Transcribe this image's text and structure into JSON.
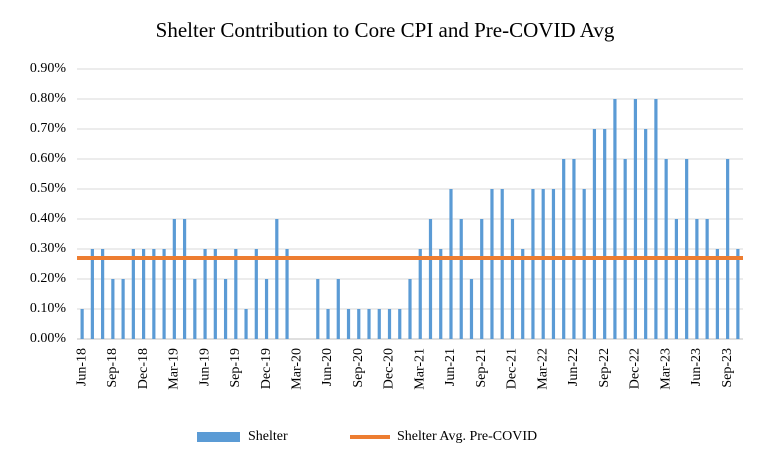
{
  "chart_data": {
    "type": "bar",
    "title": "Shelter Contribution to Core CPI and Pre-COVID Avg",
    "categories": [
      "Jun-18",
      null,
      null,
      "Sep-18",
      null,
      null,
      "Dec-18",
      null,
      null,
      "Mar-19",
      null,
      null,
      "Jun-19",
      null,
      null,
      "Sep-19",
      null,
      null,
      "Dec-19",
      null,
      null,
      "Mar-20",
      null,
      null,
      "Jun-20",
      null,
      null,
      "Sep-20",
      null,
      null,
      "Dec-20",
      null,
      null,
      "Mar-21",
      null,
      null,
      "Jun-21",
      null,
      null,
      "Sep-21",
      null,
      null,
      "Dec-21",
      null,
      null,
      "Mar-22",
      null,
      null,
      "Jun-22",
      null,
      null,
      "Sep-22",
      null,
      null,
      "Dec-22",
      null,
      null,
      "Mar-23",
      null,
      null,
      "Jun-23",
      null,
      null,
      "Sep-23",
      null
    ],
    "series": [
      {
        "name": "Shelter",
        "type": "bar",
        "color": "#5b9bd5",
        "values": [
          0.1,
          0.3,
          0.3,
          0.2,
          0.2,
          0.3,
          0.3,
          0.3,
          0.3,
          0.4,
          0.4,
          0.2,
          0.3,
          0.3,
          0.2,
          0.3,
          0.1,
          0.3,
          0.2,
          0.4,
          0.3,
          0,
          0,
          0.2,
          0.1,
          0.2,
          0.1,
          0.1,
          0.1,
          0.1,
          0.1,
          0.1,
          0.2,
          0.3,
          0.4,
          0.3,
          0.5,
          0.4,
          0.2,
          0.4,
          0.5,
          0.5,
          0.4,
          0.3,
          0.5,
          0.5,
          0.5,
          0.6,
          0.6,
          0.5,
          0.7,
          0.7,
          0.8,
          0.6,
          0.8,
          0.7,
          0.8,
          0.6,
          0.4,
          0.6,
          0.4,
          0.4,
          0.3,
          0.6,
          0.3
        ]
      },
      {
        "name": "Shelter Avg. Pre-COVID",
        "type": "hline",
        "color": "#ed7d31",
        "value": 0.27
      }
    ],
    "ylim": [
      0,
      0.9
    ],
    "yticks": [
      {
        "value": 0,
        "label": "0.00%"
      },
      {
        "value": 0.1,
        "label": "0.10%"
      },
      {
        "value": 0.2,
        "label": "0.20%"
      },
      {
        "value": 0.3,
        "label": "0.30%"
      },
      {
        "value": 0.4,
        "label": "0.40%"
      },
      {
        "value": 0.5,
        "label": "0.50%"
      },
      {
        "value": 0.6,
        "label": "0.60%"
      },
      {
        "value": 0.7,
        "label": "0.70%"
      },
      {
        "value": 0.8,
        "label": "0.80%"
      },
      {
        "value": 0.9,
        "label": "0.90%"
      }
    ],
    "grid": true,
    "legend": "bottom"
  }
}
